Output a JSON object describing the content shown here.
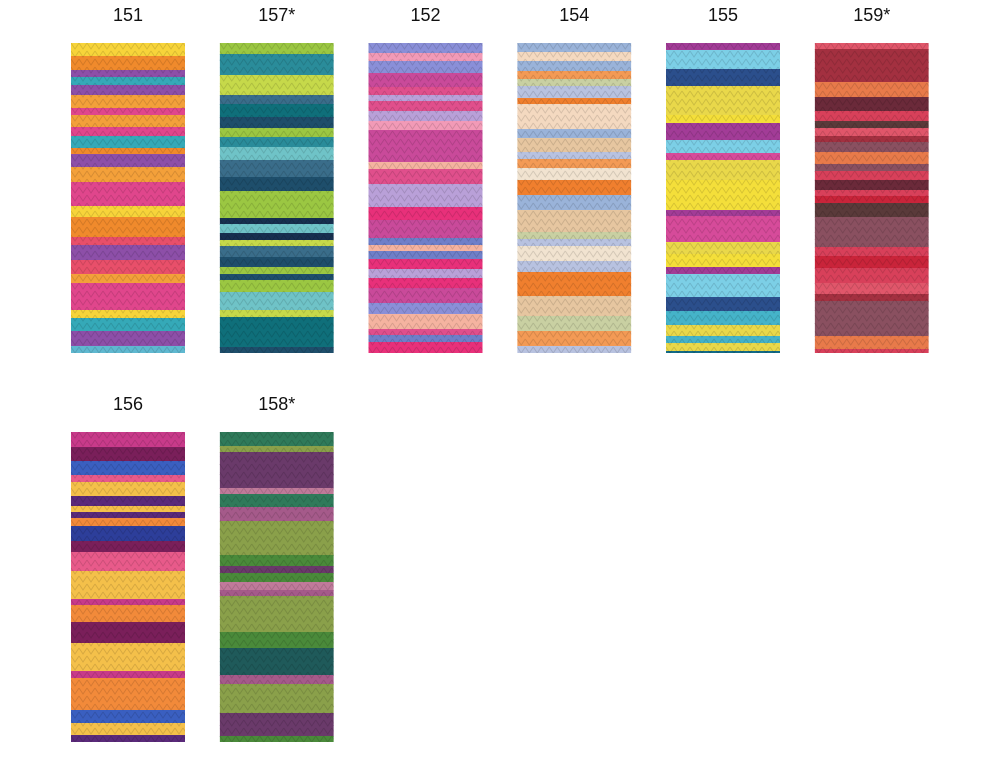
{
  "swatches": [
    {
      "label": "151"
    },
    {
      "label": "157*"
    },
    {
      "label": "152"
    },
    {
      "label": "154"
    },
    {
      "label": "155"
    },
    {
      "label": "159*"
    },
    {
      "label": "156"
    },
    {
      "label": "158*"
    }
  ]
}
